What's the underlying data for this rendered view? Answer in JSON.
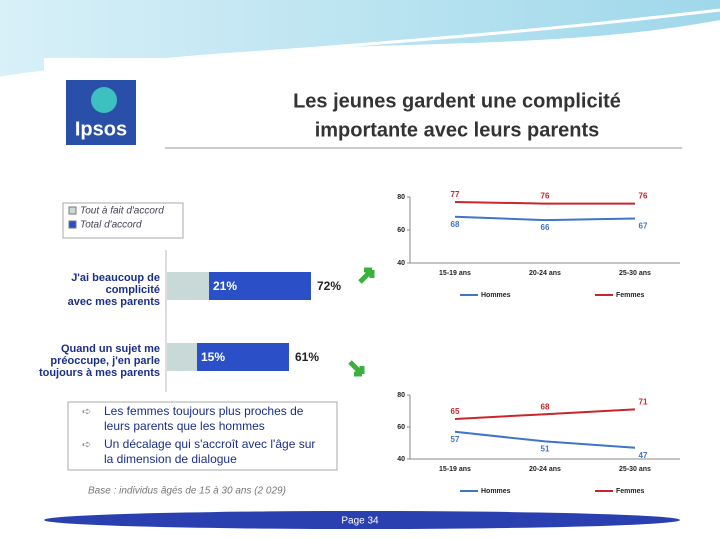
{
  "slide": {
    "title_lines": [
      "Les jeunes gardent une complicité",
      "importante avec leurs parents"
    ],
    "logo": "Ipsos",
    "bullets": [
      [
        "Les femmes toujours plus proches de",
        "leurs parents que les hommes"
      ],
      [
        "Un décalage qui s'accroît avec l'âge sur",
        "la dimension de dialogue"
      ]
    ],
    "base": "Base : individus âgés de 15 à 30 ans (2 029)",
    "page": "Page 34"
  },
  "chart_data": [
    {
      "type": "bar",
      "categories": [
        [
          "J'ai beaucoup de",
          "complicité",
          "avec mes parents"
        ],
        [
          "Quand un sujet me",
          "préoccupe, j'en parle",
          "toujours à mes parents"
        ]
      ],
      "series": [
        {
          "name": "Tout à fait d'accord",
          "color": "#c9d9d8",
          "values": [
            21,
            15
          ],
          "value_labels": [
            "21%",
            "15%"
          ]
        },
        {
          "name": "Total d'accord",
          "color": "#2b4fc6",
          "values": [
            72,
            61
          ],
          "value_labels": [
            "72%",
            "61%"
          ]
        }
      ]
    },
    {
      "type": "line",
      "categories": [
        "15-19 ans",
        "20-24 ans",
        "25-30 ans"
      ],
      "ylim": [
        40,
        80
      ],
      "yticks": [
        40,
        60,
        80
      ],
      "series": [
        {
          "name": "Hommes",
          "color": "#3f74c8",
          "values": [
            68,
            66,
            67
          ]
        },
        {
          "name": "Femmes",
          "color": "#c8262c",
          "values": [
            77,
            76,
            76
          ]
        }
      ]
    },
    {
      "type": "line",
      "categories": [
        "15-19 ans",
        "20-24 ans",
        "25-30 ans"
      ],
      "ylim": [
        40,
        80
      ],
      "yticks": [
        40,
        60,
        80
      ],
      "series": [
        {
          "name": "Hommes",
          "color": "#3f74c8",
          "values": [
            57,
            51,
            47
          ]
        },
        {
          "name": "Femmes",
          "color": "#c8262c",
          "values": [
            65,
            68,
            71
          ]
        }
      ]
    }
  ]
}
